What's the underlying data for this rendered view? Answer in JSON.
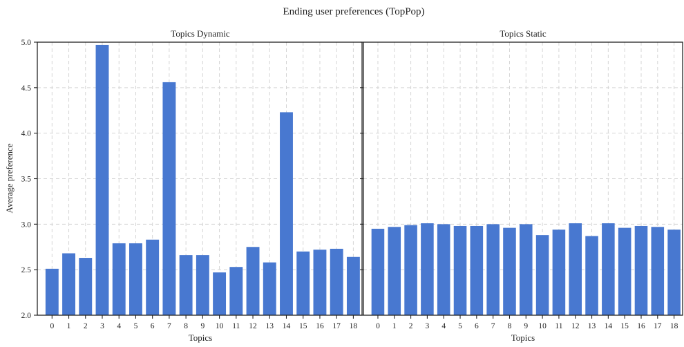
{
  "chart_data": {
    "type": "bar",
    "suptitle": "Ending user preferences (TopPop)",
    "panels": [
      {
        "title": "Topics Dynamic",
        "xlabel": "Topics",
        "ylabel": "Average preference",
        "categories": [
          "0",
          "1",
          "2",
          "3",
          "4",
          "5",
          "6",
          "7",
          "8",
          "9",
          "10",
          "11",
          "12",
          "13",
          "14",
          "15",
          "16",
          "17",
          "18"
        ],
        "values": [
          2.51,
          2.68,
          2.63,
          4.97,
          2.79,
          2.79,
          2.83,
          4.56,
          2.66,
          2.66,
          2.47,
          2.53,
          2.75,
          2.58,
          4.23,
          2.7,
          2.72,
          2.73,
          2.64
        ],
        "ylim": [
          2.0,
          5.0
        ],
        "yticks": [
          "2.0",
          "2.5",
          "3.0",
          "3.5",
          "4.0",
          "4.5",
          "5.0"
        ],
        "grid": true
      },
      {
        "title": "Topics Static",
        "xlabel": "Topics",
        "ylabel": "",
        "categories": [
          "0",
          "1",
          "2",
          "3",
          "4",
          "5",
          "6",
          "7",
          "8",
          "9",
          "10",
          "11",
          "12",
          "13",
          "14",
          "15",
          "16",
          "17",
          "18"
        ],
        "values": [
          2.95,
          2.97,
          2.99,
          3.01,
          3.0,
          2.98,
          2.98,
          3.0,
          2.96,
          3.0,
          2.88,
          2.94,
          3.01,
          2.87,
          3.01,
          2.96,
          2.98,
          2.97,
          2.94
        ],
        "ylim": [
          2.0,
          5.0
        ],
        "yticks": [
          "2.0",
          "2.5",
          "3.0",
          "3.5",
          "4.0",
          "4.5",
          "5.0"
        ],
        "grid": true
      }
    ],
    "colors": {
      "bar": "#4878d0",
      "grid": "#d5d5d5",
      "axis": "#222222"
    }
  }
}
